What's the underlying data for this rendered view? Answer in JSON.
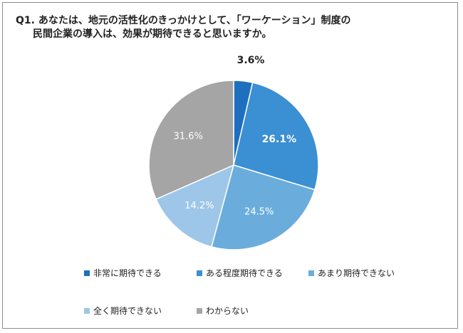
{
  "chart_data": {
    "type": "pie",
    "title_line1": "Q1.  あなたは、地元の活性化のきっかけとして、「ワーケーション」制度の",
    "title_line2": "民間企業の導入は、効果が期待できると思いますか。",
    "slices": [
      {
        "label": "非常に期待できる",
        "value": 3.6,
        "value_text": "3.6%",
        "color": "#1f6fbf",
        "label_color": "#222222",
        "bold": true
      },
      {
        "label": "ある程度期待できる",
        "value": 26.1,
        "value_text": "26.1%",
        "color": "#3b8fd3",
        "label_color": "#ffffff",
        "bold": true
      },
      {
        "label": "あまり期待できない",
        "value": 24.5,
        "value_text": "24.5%",
        "color": "#6aaddc",
        "label_color": "#ffffff",
        "bold": false
      },
      {
        "label": "全く期待できない",
        "value": 14.2,
        "value_text": "14.2%",
        "color": "#9dc6e8",
        "label_color": "#ffffff",
        "bold": false
      },
      {
        "label": "わからない",
        "value": 31.6,
        "value_text": "31.6%",
        "color": "#a5a5a5",
        "label_color": "#ffffff",
        "bold": false
      }
    ],
    "start": "12 o'clock",
    "direction": "clockwise",
    "legend_position": "bottom"
  }
}
